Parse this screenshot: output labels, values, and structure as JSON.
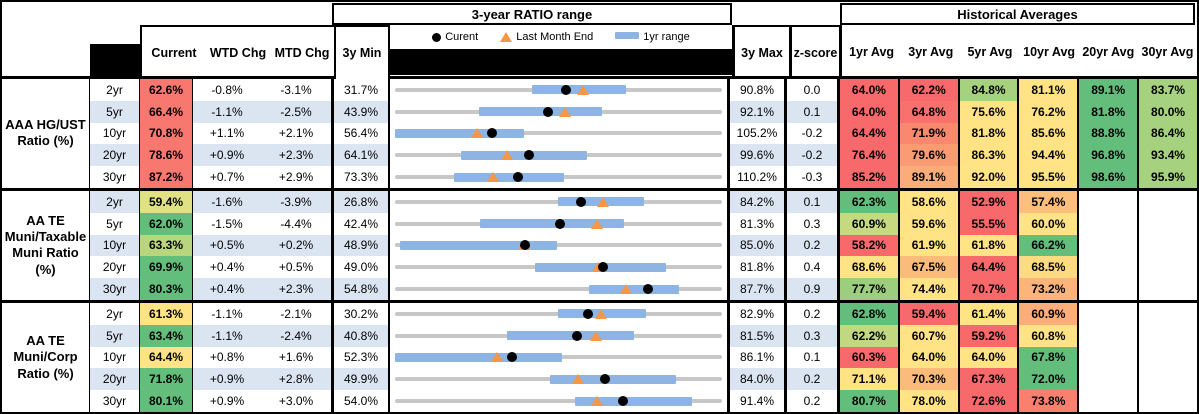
{
  "headers": {
    "range_title": "3-year RATIO range",
    "historical_title": "Historical Averages",
    "current": "Current",
    "wtd": "WTD Chg",
    "mtd": "MTD Chg",
    "min3y": "3y Min",
    "max3y": "3y Max",
    "zscore": "z-score",
    "avg_columns": [
      "1yr Avg",
      "3yr Avg",
      "5yr Avg",
      "10yr Avg",
      "20yr Avg",
      "30yr Avg"
    ],
    "legend": {
      "current": "Curent",
      "last_month_end": "Last Month End",
      "range_1yr": "1yr range"
    }
  },
  "colors": {
    "stripe_blue": "#DBE5F1",
    "bar_blue": "#8DB4E2",
    "track_gray": "#C7C7C7",
    "triangle_orange": "#F79646",
    "heat_red": "#F8696B",
    "heat_yellow": "#FFE385",
    "heat_green": "#63BE7B"
  },
  "chart_data": {
    "type": "table",
    "note": "Each row contains a bullet-range chart: gray track spans 3y Min to 3y Max, blue bar is 1yr range, black dot is Current, orange triangle is Last Month End",
    "groups": [
      {
        "label_lines": [
          "AAA HG/UST",
          "Ratio (%)"
        ],
        "rows": [
          {
            "tenor": "2yr",
            "current": "62.6%",
            "current_color": "#F87870",
            "wtd": "-0.8%",
            "mtd": "-3.1%",
            "min3y": "31.7%",
            "max3y": "90.8%",
            "z": "0.0",
            "range_chart": {
              "min": 31.7,
              "max": 90.8,
              "current": 62.6,
              "last_month_end": 65.7,
              "bar_1yr": [
                56.5,
                73.5
              ]
            },
            "avgs": [
              {
                "v": "64.0%",
                "c": "#F8696B"
              },
              {
                "v": "62.2%",
                "c": "#F8696B"
              },
              {
                "v": "84.8%",
                "c": "#A6D27F"
              },
              {
                "v": "81.1%",
                "c": "#FFE385"
              },
              {
                "v": "89.1%",
                "c": "#63BE7B"
              },
              {
                "v": "83.7%",
                "c": "#A6D27F"
              }
            ]
          },
          {
            "tenor": "5yr",
            "current": "66.4%",
            "current_color": "#F87870",
            "wtd": "-1.1%",
            "mtd": "-2.5%",
            "min3y": "43.9%",
            "max3y": "92.1%",
            "z": "0.1",
            "range_chart": {
              "min": 43.9,
              "max": 92.1,
              "current": 66.4,
              "last_month_end": 68.9,
              "bar_1yr": [
                56.3,
                74.4
              ]
            },
            "avgs": [
              {
                "v": "64.0%",
                "c": "#F8696B"
              },
              {
                "v": "64.8%",
                "c": "#F8716D"
              },
              {
                "v": "75.6%",
                "c": "#FFE385"
              },
              {
                "v": "76.2%",
                "c": "#FFE385"
              },
              {
                "v": "81.8%",
                "c": "#63BE7B"
              },
              {
                "v": "80.0%",
                "c": "#A6D27F"
              }
            ]
          },
          {
            "tenor": "10yr",
            "current": "70.8%",
            "current_color": "#F87870",
            "wtd": "+1.1%",
            "mtd": "+2.1%",
            "min3y": "56.4%",
            "max3y": "105.2%",
            "z": "-0.2",
            "range_chart": {
              "min": 56.4,
              "max": 105.2,
              "current": 70.8,
              "last_month_end": 68.7,
              "bar_1yr": [
                56.4,
                75.6
              ]
            },
            "avgs": [
              {
                "v": "64.4%",
                "c": "#F8696B"
              },
              {
                "v": "71.9%",
                "c": "#F9886F"
              },
              {
                "v": "81.8%",
                "c": "#FFE385"
              },
              {
                "v": "85.6%",
                "c": "#FFE385"
              },
              {
                "v": "88.8%",
                "c": "#63BE7B"
              },
              {
                "v": "86.4%",
                "c": "#A6D27F"
              }
            ]
          },
          {
            "tenor": "20yr",
            "current": "78.6%",
            "current_color": "#F87870",
            "wtd": "+0.9%",
            "mtd": "+2.3%",
            "min3y": "64.1%",
            "max3y": "99.6%",
            "z": "-0.2",
            "range_chart": {
              "min": 64.1,
              "max": 99.6,
              "current": 78.6,
              "last_month_end": 76.3,
              "bar_1yr": [
                71.3,
                84.9
              ]
            },
            "avgs": [
              {
                "v": "76.4%",
                "c": "#F8696B"
              },
              {
                "v": "79.6%",
                "c": "#FA9B73"
              },
              {
                "v": "86.3%",
                "c": "#FFE385"
              },
              {
                "v": "94.4%",
                "c": "#FFE385"
              },
              {
                "v": "96.8%",
                "c": "#63BE7B"
              },
              {
                "v": "93.4%",
                "c": "#A6D27F"
              }
            ]
          },
          {
            "tenor": "30yr",
            "current": "87.2%",
            "current_color": "#F87870",
            "wtd": "+0.7%",
            "mtd": "+2.9%",
            "min3y": "73.3%",
            "max3y": "110.2%",
            "z": "-0.3",
            "range_chart": {
              "min": 73.3,
              "max": 110.2,
              "current": 87.2,
              "last_month_end": 84.3,
              "bar_1yr": [
                79.9,
                92.4
              ]
            },
            "avgs": [
              {
                "v": "85.2%",
                "c": "#F8696B"
              },
              {
                "v": "89.1%",
                "c": "#FBAC78"
              },
              {
                "v": "92.0%",
                "c": "#FFE385"
              },
              {
                "v": "95.5%",
                "c": "#FFE385"
              },
              {
                "v": "98.6%",
                "c": "#63BE7B"
              },
              {
                "v": "95.9%",
                "c": "#A6D27F"
              }
            ]
          }
        ]
      },
      {
        "label_lines": [
          "AA TE",
          "Muni/Taxable",
          "Muni Ratio",
          "(%)"
        ],
        "rows": [
          {
            "tenor": "2yr",
            "current": "59.4%",
            "current_color": "#DFE182",
            "wtd": "-1.6%",
            "mtd": "-3.9%",
            "min3y": "26.8%",
            "max3y": "84.2%",
            "z": "0.1",
            "range_chart": {
              "min": 26.8,
              "max": 84.2,
              "current": 59.4,
              "last_month_end": 63.3,
              "bar_1yr": [
                55.4,
                70.6
              ]
            },
            "avgs": [
              {
                "v": "62.3%",
                "c": "#63BE7B"
              },
              {
                "v": "58.6%",
                "c": "#FFE385"
              },
              {
                "v": "52.9%",
                "c": "#F8696B"
              },
              {
                "v": "57.4%",
                "c": "#FCBF7C"
              },
              {
                "v": "",
                "c": "#FFFFFF"
              },
              {
                "v": "",
                "c": "#FFFFFF"
              }
            ]
          },
          {
            "tenor": "5yr",
            "current": "62.0%",
            "current_color": "#63BE7B",
            "wtd": "-1.5%",
            "mtd": "-4.4%",
            "min3y": "42.4%",
            "max3y": "81.3%",
            "z": "0.3",
            "range_chart": {
              "min": 42.4,
              "max": 81.3,
              "current": 62.0,
              "last_month_end": 66.4,
              "bar_1yr": [
                52.5,
                69.6
              ]
            },
            "avgs": [
              {
                "v": "60.9%",
                "c": "#C4D980"
              },
              {
                "v": "59.6%",
                "c": "#FFE385"
              },
              {
                "v": "55.5%",
                "c": "#F8696B"
              },
              {
                "v": "60.0%",
                "c": "#FFE385"
              },
              {
                "v": "",
                "c": "#FFFFFF"
              },
              {
                "v": "",
                "c": "#FFFFFF"
              }
            ]
          },
          {
            "tenor": "10yr",
            "current": "63.3%",
            "current_color": "#B9D67F",
            "wtd": "+0.5%",
            "mtd": "+0.2%",
            "min3y": "48.9%",
            "max3y": "85.0%",
            "z": "0.2",
            "range_chart": {
              "min": 48.9,
              "max": 85.0,
              "current": 63.3,
              "last_month_end": 63.1,
              "bar_1yr": [
                49.4,
                66.8
              ]
            },
            "avgs": [
              {
                "v": "58.2%",
                "c": "#F8696B"
              },
              {
                "v": "61.9%",
                "c": "#FFE385"
              },
              {
                "v": "61.8%",
                "c": "#FFE385"
              },
              {
                "v": "66.2%",
                "c": "#63BE7B"
              },
              {
                "v": "",
                "c": "#FFFFFF"
              },
              {
                "v": "",
                "c": "#FFFFFF"
              }
            ]
          },
          {
            "tenor": "20yr",
            "current": "69.9%",
            "current_color": "#63BE7B",
            "wtd": "+0.4%",
            "mtd": "+0.5%",
            "min3y": "49.0%",
            "max3y": "81.8%",
            "z": "0.4",
            "range_chart": {
              "min": 49.0,
              "max": 81.8,
              "current": 69.9,
              "last_month_end": 69.4,
              "bar_1yr": [
                63.0,
                76.2
              ]
            },
            "avgs": [
              {
                "v": "68.6%",
                "c": "#FFE385"
              },
              {
                "v": "67.5%",
                "c": "#FBBC7B"
              },
              {
                "v": "64.4%",
                "c": "#F8696B"
              },
              {
                "v": "68.5%",
                "c": "#FEDA81"
              },
              {
                "v": "",
                "c": "#FFFFFF"
              },
              {
                "v": "",
                "c": "#FFFFFF"
              }
            ]
          },
          {
            "tenor": "30yr",
            "current": "80.3%",
            "current_color": "#63BE7B",
            "wtd": "+0.4%",
            "mtd": "+2.3%",
            "min3y": "54.8%",
            "max3y": "87.7%",
            "z": "0.9",
            "range_chart": {
              "min": 54.8,
              "max": 87.7,
              "current": 80.3,
              "last_month_end": 78.0,
              "bar_1yr": [
                74.3,
                83.4
              ]
            },
            "avgs": [
              {
                "v": "77.7%",
                "c": "#9CCE7E"
              },
              {
                "v": "74.4%",
                "c": "#FFE385"
              },
              {
                "v": "70.7%",
                "c": "#F8696B"
              },
              {
                "v": "73.2%",
                "c": "#FBB57A"
              },
              {
                "v": "",
                "c": "#FFFFFF"
              },
              {
                "v": "",
                "c": "#FFFFFF"
              }
            ]
          }
        ]
      },
      {
        "label_lines": [
          "AA TE",
          "Muni/Corp",
          "Ratio (%)"
        ],
        "rows": [
          {
            "tenor": "2yr",
            "current": "61.3%",
            "current_color": "#FFE385",
            "wtd": "-1.1%",
            "mtd": "-2.1%",
            "min3y": "30.2%",
            "max3y": "82.9%",
            "z": "0.2",
            "range_chart": {
              "min": 30.2,
              "max": 82.9,
              "current": 61.3,
              "last_month_end": 63.4,
              "bar_1yr": [
                56.4,
                70.7
              ]
            },
            "avgs": [
              {
                "v": "62.8%",
                "c": "#63BE7B"
              },
              {
                "v": "59.4%",
                "c": "#F8696B"
              },
              {
                "v": "61.4%",
                "c": "#FFE385"
              },
              {
                "v": "60.9%",
                "c": "#FBAE79"
              },
              {
                "v": "",
                "c": "#FFFFFF"
              },
              {
                "v": "",
                "c": "#FFFFFF"
              }
            ]
          },
          {
            "tenor": "5yr",
            "current": "63.4%",
            "current_color": "#63BE7B",
            "wtd": "-1.1%",
            "mtd": "-2.4%",
            "min3y": "40.8%",
            "max3y": "81.5%",
            "z": "0.3",
            "range_chart": {
              "min": 40.8,
              "max": 81.5,
              "current": 63.4,
              "last_month_end": 65.8,
              "bar_1yr": [
                54.8,
                70.6
              ]
            },
            "avgs": [
              {
                "v": "62.2%",
                "c": "#C0D87F"
              },
              {
                "v": "60.7%",
                "c": "#FFE385"
              },
              {
                "v": "59.2%",
                "c": "#F8696B"
              },
              {
                "v": "60.8%",
                "c": "#FFE385"
              },
              {
                "v": "",
                "c": "#FFFFFF"
              },
              {
                "v": "",
                "c": "#FFFFFF"
              }
            ]
          },
          {
            "tenor": "10yr",
            "current": "64.4%",
            "current_color": "#FFE385",
            "wtd": "+0.8%",
            "mtd": "+1.6%",
            "min3y": "52.3%",
            "max3y": "86.1%",
            "z": "0.1",
            "range_chart": {
              "min": 52.3,
              "max": 86.1,
              "current": 64.4,
              "last_month_end": 62.8,
              "bar_1yr": [
                52.3,
                69.6
              ]
            },
            "avgs": [
              {
                "v": "60.3%",
                "c": "#F8696B"
              },
              {
                "v": "64.0%",
                "c": "#FFE385"
              },
              {
                "v": "64.0%",
                "c": "#FFE385"
              },
              {
                "v": "67.8%",
                "c": "#63BE7B"
              },
              {
                "v": "",
                "c": "#FFFFFF"
              },
              {
                "v": "",
                "c": "#FFFFFF"
              }
            ]
          },
          {
            "tenor": "20yr",
            "current": "71.8%",
            "current_color": "#63BE7B",
            "wtd": "+0.9%",
            "mtd": "+2.8%",
            "min3y": "49.9%",
            "max3y": "84.0%",
            "z": "0.2",
            "range_chart": {
              "min": 49.9,
              "max": 84.0,
              "current": 71.8,
              "last_month_end": 69.0,
              "bar_1yr": [
                66.1,
                79.2
              ]
            },
            "avgs": [
              {
                "v": "71.1%",
                "c": "#FFE385"
              },
              {
                "v": "70.3%",
                "c": "#FBBC7B"
              },
              {
                "v": "67.3%",
                "c": "#F8696B"
              },
              {
                "v": "72.0%",
                "c": "#63BE7B"
              },
              {
                "v": "",
                "c": "#FFFFFF"
              },
              {
                "v": "",
                "c": "#FFFFFF"
              }
            ]
          },
          {
            "tenor": "30yr",
            "current": "80.1%",
            "current_color": "#63BE7B",
            "wtd": "+0.9%",
            "mtd": "+3.0%",
            "min3y": "54.0%",
            "max3y": "91.4%",
            "z": "0.2",
            "range_chart": {
              "min": 54.0,
              "max": 91.4,
              "current": 80.1,
              "last_month_end": 77.1,
              "bar_1yr": [
                74.6,
                88.0
              ]
            },
            "avgs": [
              {
                "v": "80.7%",
                "c": "#63BE7B"
              },
              {
                "v": "78.0%",
                "c": "#FFE385"
              },
              {
                "v": "72.6%",
                "c": "#F8696B"
              },
              {
                "v": "73.8%",
                "c": "#F9806F"
              },
              {
                "v": "",
                "c": "#FFFFFF"
              },
              {
                "v": "",
                "c": "#FFFFFF"
              }
            ]
          }
        ]
      }
    ]
  }
}
